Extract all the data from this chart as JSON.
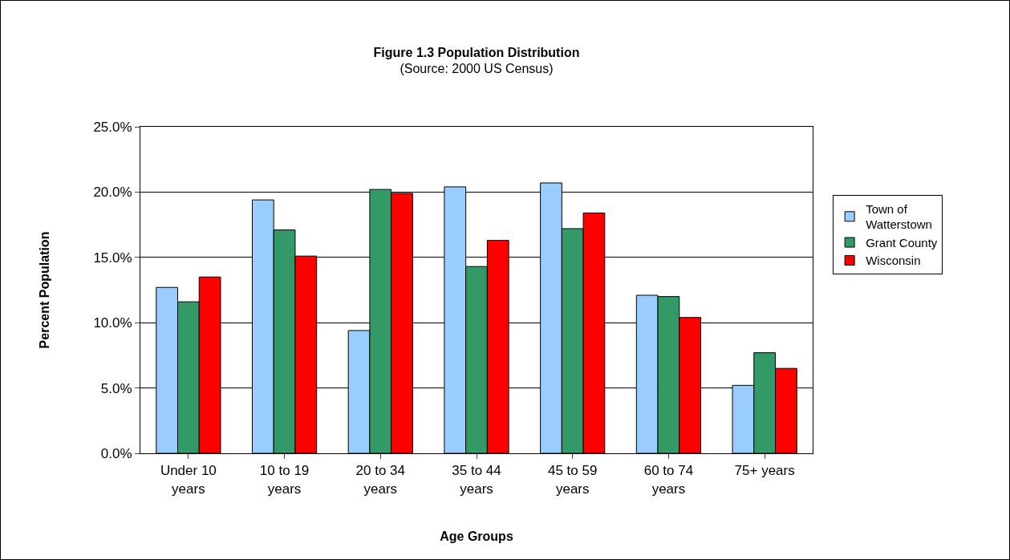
{
  "chart_data": {
    "type": "bar",
    "title": "Figure 1.3 Population Distribution",
    "subtitle": "(Source: 2000 US Census)",
    "xlabel": "Age Groups",
    "ylabel": "Percent Population",
    "categories": [
      "Under 10 years",
      "10 to 19 years",
      "20 to 34 years",
      "35 to 44 years",
      "45 to 59 years",
      "60 to 74 years",
      "75+ years"
    ],
    "series": [
      {
        "name": "Town of Watterstown",
        "color": "#99ccff",
        "values": [
          12.7,
          19.4,
          9.4,
          20.4,
          20.7,
          12.1,
          5.2
        ]
      },
      {
        "name": "Grant County",
        "color": "#339966",
        "values": [
          11.6,
          17.1,
          20.2,
          14.3,
          17.2,
          12.0,
          7.7
        ]
      },
      {
        "name": "Wisconsin",
        "color": "#ff0000",
        "values": [
          13.5,
          15.1,
          19.9,
          16.3,
          18.4,
          10.4,
          6.5
        ]
      }
    ],
    "ylim": [
      0,
      25
    ],
    "yticks": [
      {
        "value": 0,
        "label": "0.0%"
      },
      {
        "value": 5,
        "label": "5.0%"
      },
      {
        "value": 10,
        "label": "10.0%"
      },
      {
        "value": 15,
        "label": "15.0%"
      },
      {
        "value": 20,
        "label": "20.0%"
      },
      {
        "value": 25,
        "label": "25.0%"
      }
    ],
    "grid": "y",
    "legend": "right"
  }
}
